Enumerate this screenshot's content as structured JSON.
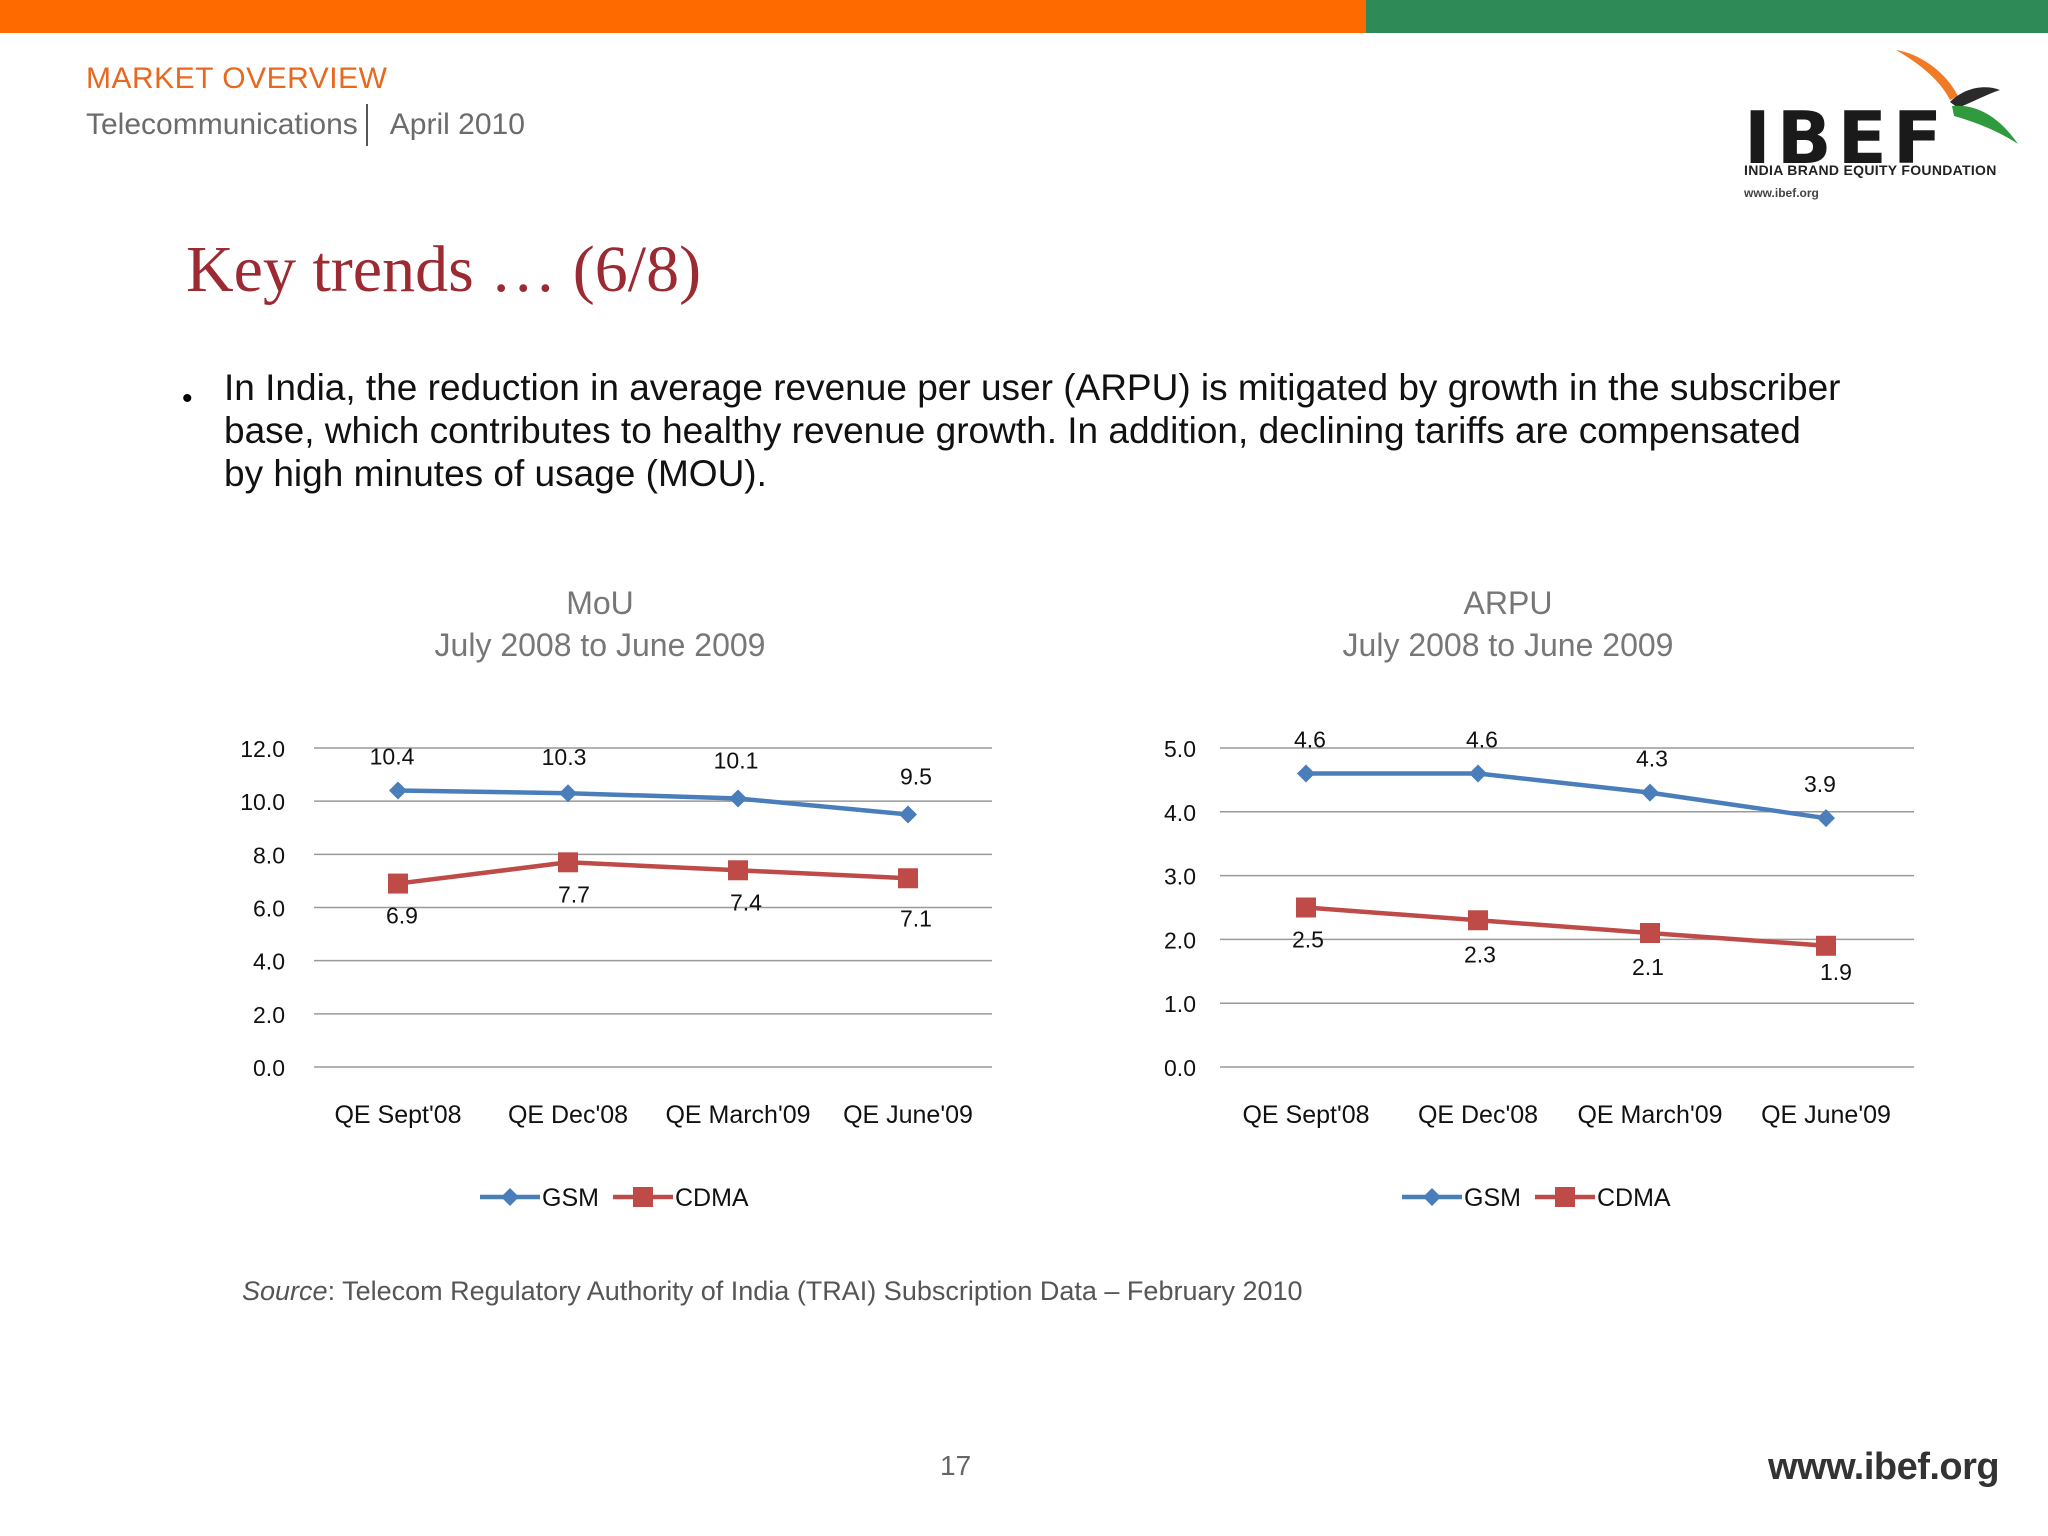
{
  "header": {
    "section": "MARKET OVERVIEW",
    "topic": "Telecommunications",
    "date": "April 2010",
    "accent_orange": "#ff6a00",
    "accent_green": "#2e8b57"
  },
  "logo": {
    "word": "IBEF",
    "subtitle": "INDIA BRAND EQUITY FOUNDATION",
    "url": "www.ibef.org",
    "icon": "bird-logo-icon"
  },
  "slide": {
    "title": "Key trends … (6/8)",
    "bullet": "In India, the reduction in average revenue per user (ARPU) is mitigated by growth in the subscriber base, which contributes to healthy revenue growth. In addition, declining tariffs are compensated by high minutes of usage (MOU).",
    "source_label": "Source",
    "source_text": ": Telecom Regulatory Authority of India (TRAI) Subscription Data – February 2010",
    "page_number": "17",
    "footer_url": "www.ibef.org"
  },
  "chart_data": [
    {
      "type": "line",
      "title": "MoU",
      "subtitle": "July 2008 to June 2009",
      "categories": [
        "QE Sept'08",
        "QE Dec'08",
        "QE March'09",
        "QE June'09"
      ],
      "series": [
        {
          "name": "GSM",
          "values": [
            10.4,
            10.3,
            10.1,
            9.5
          ],
          "color": "#4a7ebb",
          "marker": "diamond"
        },
        {
          "name": "CDMA",
          "values": [
            6.9,
            7.7,
            7.4,
            7.1
          ],
          "color": "#be4b48",
          "marker": "square"
        }
      ],
      "ylim": [
        0,
        12
      ],
      "yticks": [
        "0.0",
        "2.0",
        "4.0",
        "6.0",
        "8.0",
        "10.0",
        "12.0"
      ],
      "ytick_values": [
        0,
        2,
        4,
        6,
        8,
        10,
        12
      ],
      "grid": true,
      "legend": "bottom"
    },
    {
      "type": "line",
      "title": "ARPU",
      "subtitle": "July 2008 to June 2009",
      "categories": [
        "QE Sept'08",
        "QE Dec'08",
        "QE March'09",
        "QE June'09"
      ],
      "series": [
        {
          "name": "GSM",
          "values": [
            4.6,
            4.6,
            4.3,
            3.9
          ],
          "color": "#4a7ebb",
          "marker": "diamond"
        },
        {
          "name": "CDMA",
          "values": [
            2.5,
            2.3,
            2.1,
            1.9
          ],
          "color": "#be4b48",
          "marker": "square"
        }
      ],
      "ylim": [
        0,
        5
      ],
      "yticks": [
        "0.0",
        "1.0",
        "2.0",
        "3.0",
        "4.0",
        "5.0"
      ],
      "ytick_values": [
        0,
        1,
        2,
        3,
        4,
        5
      ],
      "grid": true,
      "legend": "bottom"
    }
  ]
}
